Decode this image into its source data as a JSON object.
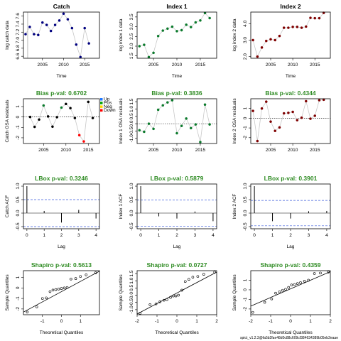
{
  "footer": "spict_v1.2.3@fa5b2fae48d0c88c609cf384634389b05eb2eaae",
  "chart_data": [
    {
      "id": "r0c0",
      "type": "scatter",
      "title": "Catch",
      "xlabel": "Time",
      "ylabel": "log catch data",
      "xlim": [
        2000.5,
        2018.5
      ],
      "ylim": [
        6.55,
        7.7
      ],
      "xticks": [
        2005,
        2010,
        2015
      ],
      "yticks": [
        6.6,
        6.8,
        7.0,
        7.2,
        7.4,
        7.6
      ],
      "yticklabels": [
        "6.6",
        "6.8",
        "7.0",
        "7.2",
        "7.4",
        "7.6"
      ],
      "vline": 2001.5,
      "hline": null,
      "line": true,
      "marker": "filled",
      "color": "#00007f",
      "x": [
        2001,
        2002,
        2003,
        2004,
        2005,
        2006,
        2007,
        2008,
        2009,
        2010,
        2011,
        2012,
        2013,
        2014,
        2015,
        2016
      ],
      "y": [
        7.15,
        7.33,
        7.15,
        7.13,
        7.44,
        7.38,
        7.23,
        7.38,
        7.49,
        7.66,
        7.52,
        7.3,
        6.89,
        6.58,
        7.3,
        6.92
      ]
    },
    {
      "id": "r0c1",
      "type": "scatter",
      "title": "Index 1",
      "xlabel": "Time",
      "ylabel": "log index 1 data",
      "xlim": [
        2001.5,
        2018.5
      ],
      "ylim": [
        1.38,
        3.75
      ],
      "xticks": [
        2005,
        2010,
        2015
      ],
      "yticks": [
        1.5,
        2.0,
        2.5,
        3.0,
        3.5
      ],
      "yticklabels": [
        "1.5",
        "2.0",
        "2.5",
        "3.0",
        "3.5"
      ],
      "vline": null,
      "hline": null,
      "line": true,
      "marker": "filled",
      "color": "#0b7a2c",
      "x": [
        2002,
        2003,
        2004,
        2005,
        2006,
        2007,
        2008,
        2009,
        2010,
        2011,
        2012,
        2013,
        2014,
        2015,
        2016,
        2017
      ],
      "y": [
        2.0,
        2.07,
        1.44,
        1.66,
        2.52,
        2.8,
        2.9,
        3.0,
        2.77,
        2.82,
        3.1,
        2.98,
        3.22,
        3.32,
        3.7,
        3.44
      ]
    },
    {
      "id": "r0c2",
      "type": "scatter",
      "title": "Index 2",
      "xlabel": "Time",
      "ylabel": "log index 2 data",
      "xlim": [
        2000.5,
        2018.5
      ],
      "ylim": [
        1.9,
        4.7
      ],
      "xticks": [
        2005,
        2010,
        2015
      ],
      "yticks": [
        2.0,
        3.0,
        4.0
      ],
      "yticklabels": [
        "2.0",
        "3.0",
        "4.0"
      ],
      "vline": null,
      "hline": null,
      "line": true,
      "marker": "filled",
      "color": "#7f0000",
      "x": [
        2001,
        2002,
        2003,
        2004,
        2005,
        2006,
        2007,
        2008,
        2009,
        2010,
        2011,
        2012,
        2013,
        2014,
        2015,
        2016,
        2017
      ],
      "y": [
        3.0,
        2.0,
        2.55,
        2.95,
        3.05,
        3.0,
        3.25,
        3.75,
        3.75,
        3.8,
        3.8,
        3.75,
        3.82,
        4.35,
        4.33,
        4.33,
        4.65
      ]
    },
    {
      "id": "r1c0",
      "type": "scatter",
      "title": "Bias p-val: 0.6702",
      "xlabel": "",
      "ylabel": "Catch OSA residuals",
      "xlim": [
        2000.5,
        2017.5
      ],
      "ylim": [
        -2.55,
        1.75
      ],
      "xticks": [
        2005,
        2010,
        2015
      ],
      "yticks": [
        -2,
        -1,
        0,
        1
      ],
      "yticklabels": [
        "-2",
        "-1",
        "0",
        "1"
      ],
      "vline": null,
      "hline": 0,
      "line": true,
      "marker": "mixed",
      "color": "#000000",
      "legend": {
        "position": "top-right",
        "entries": [
          "Up",
          "Pos",
          "Neg",
          "Down"
        ],
        "colors": [
          "#1f77ff",
          "#00a000",
          "#ffd700",
          "#ff0000"
        ]
      },
      "x": [
        2002,
        2003,
        2004,
        2005,
        2006,
        2007,
        2008,
        2009,
        2010,
        2011,
        2012,
        2013,
        2014,
        2015,
        2016
      ],
      "y": [
        0.0,
        -0.95,
        -0.25,
        1.1,
        0.05,
        -0.93,
        -0.02,
        0.9,
        1.25,
        0.85,
        -0.1,
        -1.75,
        -2.35,
        1.45,
        -0.1
      ],
      "colors": [
        "#000000",
        "#000000",
        "#000000",
        "#0b7a2c",
        "#000000",
        "#000000",
        "#000000",
        "#0b7a2c",
        "#000000",
        "#000000",
        "#000000",
        "#ff0000",
        "#ff0000",
        "#000000",
        "#000000"
      ]
    },
    {
      "id": "r1c1",
      "type": "scatter",
      "title": "Bias p-val: 0.3836",
      "xlabel": "",
      "ylabel": "Index 1 OSA residuals",
      "xlim": [
        2001.5,
        2018.5
      ],
      "ylim": [
        -1.35,
        1.7
      ],
      "xticks": [
        2005,
        2010,
        2015
      ],
      "yticks": [
        -1.0,
        -0.5,
        0.0,
        0.5,
        1.0,
        1.5
      ],
      "yticklabels": [
        "-1.0",
        "-0.5",
        "0.0",
        "0.5",
        "1.0",
        "1.5"
      ],
      "vline": null,
      "hline": 0,
      "line": true,
      "marker": "filled",
      "color": "#0b7a2c",
      "x": [
        2002,
        2003,
        2004,
        2005,
        2006,
        2007,
        2008,
        2009,
        2010,
        2011,
        2012,
        2013,
        2014,
        2015,
        2016,
        2017
      ],
      "y": [
        -0.45,
        -0.55,
        0.0,
        -0.35,
        0.95,
        1.25,
        1.45,
        1.6,
        -0.65,
        -0.15,
        0.35,
        -0.3,
        -0.05,
        -1.25,
        1.3,
        -0.05
      ]
    },
    {
      "id": "r1c2",
      "type": "scatter",
      "title": "Bias p-val: 0.4344",
      "xlabel": "",
      "ylabel": "Index 2 OSA residuals",
      "xlim": [
        2000.5,
        2018.5
      ],
      "ylim": [
        -2.6,
        2.0
      ],
      "xticks": [
        2005,
        2010,
        2015
      ],
      "yticks": [
        -2,
        -1,
        0,
        1
      ],
      "yticklabels": [
        "-2",
        "-1",
        "0",
        "1"
      ],
      "vline": null,
      "hline": 0,
      "line": true,
      "marker": "filled",
      "color": "#7f0000",
      "x": [
        2001,
        2002,
        2003,
        2004,
        2005,
        2006,
        2007,
        2008,
        2009,
        2010,
        2011,
        2012,
        2013,
        2014,
        2015,
        2016,
        2017
      ],
      "y": [
        0.75,
        -2.35,
        1.0,
        1.7,
        -0.35,
        -1.3,
        -0.95,
        0.5,
        0.55,
        0.65,
        -0.2,
        0.05,
        1.75,
        -0.05,
        0.25,
        1.85,
        1.9
      ]
    },
    {
      "id": "r2c0",
      "type": "acf",
      "title": "LBox p-val: 0.3246",
      "xlabel": "Lag",
      "ylabel": "Catch ACF",
      "xlim": [
        -0.2,
        4.2
      ],
      "ylim": [
        -0.58,
        1.08
      ],
      "xticks": [
        0,
        1,
        2,
        3,
        4
      ],
      "yticks": [
        -0.5,
        0.0,
        0.5,
        1.0
      ],
      "yticklabels": [
        "-0.5",
        "0.0",
        "0.5",
        "1.0"
      ],
      "lags": [
        0,
        1,
        2,
        3,
        4
      ],
      "acf": [
        1.0,
        0.08,
        -0.35,
        0.12,
        -0.2
      ],
      "ci": 0.5
    },
    {
      "id": "r2c1",
      "type": "acf",
      "title": "LBox p-val: 0.5879",
      "xlabel": "Lag",
      "ylabel": "Index 1 ACF",
      "xlim": [
        -0.2,
        4.2
      ],
      "ylim": [
        -0.58,
        1.08
      ],
      "xticks": [
        0,
        1,
        2,
        3,
        4
      ],
      "yticks": [
        -0.5,
        0.0,
        0.5,
        1.0
      ],
      "yticklabels": [
        "-0.5",
        "0.0",
        "0.5",
        "1.0"
      ],
      "lags": [
        0,
        1,
        2,
        3,
        4
      ],
      "acf": [
        1.0,
        -0.12,
        -0.2,
        0.06,
        -0.3
      ],
      "ci": 0.49
    },
    {
      "id": "r2c2",
      "type": "acf",
      "title": "LBox p-val: 0.3901",
      "xlabel": "Lag",
      "ylabel": "Index 2 ACF",
      "xlim": [
        -0.2,
        4.2
      ],
      "ylim": [
        -0.58,
        1.08
      ],
      "xticks": [
        0,
        1,
        2,
        3,
        4
      ],
      "yticks": [
        -0.5,
        0.0,
        0.5,
        1.0
      ],
      "yticklabels": [
        "-0.5",
        "0.0",
        "0.5",
        "1.0"
      ],
      "lags": [
        0,
        1,
        2,
        3,
        4
      ],
      "acf": [
        1.0,
        -0.3,
        -0.2,
        0.07,
        0.08
      ],
      "ci": 0.47
    },
    {
      "id": "r3c0",
      "type": "qq",
      "title": "Shapiro p-val: 0.5613",
      "xlabel": "Theoretical Quantiles",
      "ylabel": "Sample Quantiles",
      "xlim": [
        -2.0,
        2.0
      ],
      "ylim": [
        -2.55,
        1.65
      ],
      "xticks": [
        -1,
        0,
        1
      ],
      "yticks": [
        -2,
        -1,
        0,
        1
      ],
      "yticklabels": [
        "-2",
        "-1",
        "0",
        "1"
      ],
      "qqline": [
        [
          -2.0,
          -2.3
        ],
        [
          2.0,
          1.6
        ]
      ],
      "x": [
        -1.8,
        -1.3,
        -1.0,
        -0.8,
        -0.6,
        -0.45,
        -0.3,
        -0.15,
        0.0,
        0.15,
        0.3,
        0.5,
        0.75,
        1.0,
        1.3,
        1.8
      ],
      "y": [
        -2.3,
        -1.8,
        -1.0,
        -0.95,
        -0.35,
        -0.2,
        -0.15,
        -0.1,
        -0.05,
        0.0,
        0.05,
        0.85,
        0.9,
        1.1,
        1.25,
        1.45
      ]
    },
    {
      "id": "r3c1",
      "type": "qq",
      "title": "Shapiro p-val: 0.0727",
      "xlabel": "Theoretical Quantiles",
      "ylabel": "Sample Quantiles",
      "xlim": [
        -2.0,
        2.0
      ],
      "ylim": [
        -1.35,
        1.7
      ],
      "xticks": [
        -2,
        -1,
        0,
        1,
        2
      ],
      "yticks": [
        -1.0,
        -0.5,
        0.0,
        0.5,
        1.0,
        1.5
      ],
      "yticklabels": [
        "-1.0",
        "-0.5",
        "0.0",
        "0.5",
        "1.0",
        "1.5"
      ],
      "qqline": [
        [
          -2.0,
          -1.3
        ],
        [
          2.0,
          1.6
        ]
      ],
      "x": [
        -1.85,
        -1.35,
        -1.05,
        -0.85,
        -0.65,
        -0.5,
        -0.32,
        -0.18,
        -0.05,
        0.08,
        0.25,
        0.42,
        0.6,
        0.8,
        1.05,
        1.35,
        1.9
      ],
      "y": [
        -1.25,
        -0.65,
        -0.6,
        -0.45,
        -0.35,
        -0.3,
        -0.15,
        -0.05,
        -0.05,
        0.0,
        0.35,
        0.95,
        1.1,
        1.25,
        1.3,
        1.45,
        1.6
      ]
    },
    {
      "id": "r3c2",
      "type": "qq",
      "title": "Shapiro p-val: 0.4359",
      "xlabel": "Theoretical Quantiles",
      "ylabel": "Sample Quantiles",
      "xlim": [
        -2.0,
        2.0
      ],
      "ylim": [
        -2.6,
        2.0
      ],
      "xticks": [
        -2,
        -1,
        0,
        1,
        2
      ],
      "yticks": [
        -2,
        -1,
        0,
        1
      ],
      "yticklabels": [
        "-2",
        "-1",
        "0",
        "1"
      ],
      "qqline": [
        [
          -2.0,
          -1.7
        ],
        [
          2.0,
          1.9
        ]
      ],
      "x": [
        -1.9,
        -1.3,
        -0.95,
        -0.75,
        -0.55,
        -0.4,
        -0.25,
        -0.1,
        0.05,
        0.2,
        0.35,
        0.5,
        0.7,
        0.9,
        1.2,
        1.5,
        1.9
      ],
      "y": [
        -2.35,
        -1.3,
        -0.95,
        -0.35,
        -0.2,
        -0.05,
        0.05,
        0.25,
        0.5,
        0.55,
        0.65,
        0.75,
        0.9,
        1.0,
        1.7,
        1.75,
        1.85
      ]
    }
  ]
}
